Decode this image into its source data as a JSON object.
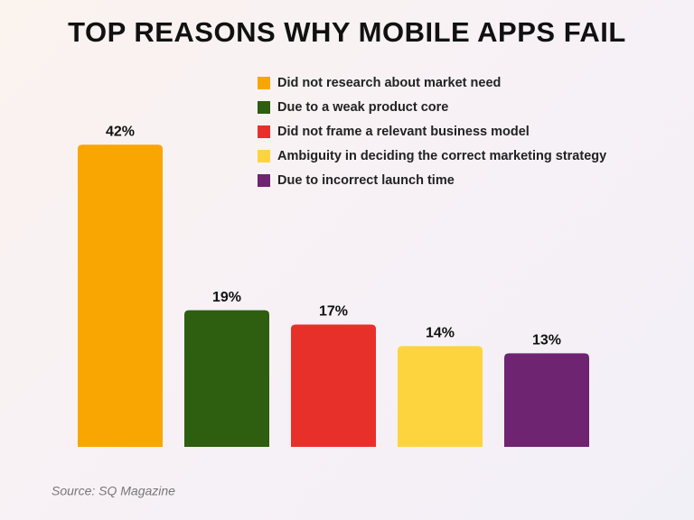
{
  "chart_data": {
    "type": "bar",
    "title": "TOP REASONS WHY MOBILE APPS FAIL",
    "categories": [
      "Did not research about market need",
      "Due to a weak product core",
      "Did not frame a relevant business model",
      "Ambiguity in deciding the correct marketing strategy",
      "Due to incorrect launch time"
    ],
    "values": [
      42,
      19,
      17,
      14,
      13
    ],
    "value_labels": [
      "42%",
      "19%",
      "17%",
      "14%",
      "13%"
    ],
    "colors": [
      "#f9a602",
      "#2e5e10",
      "#e8302a",
      "#fdd43e",
      "#6e2470"
    ],
    "source": "Source: SQ Magazine"
  }
}
